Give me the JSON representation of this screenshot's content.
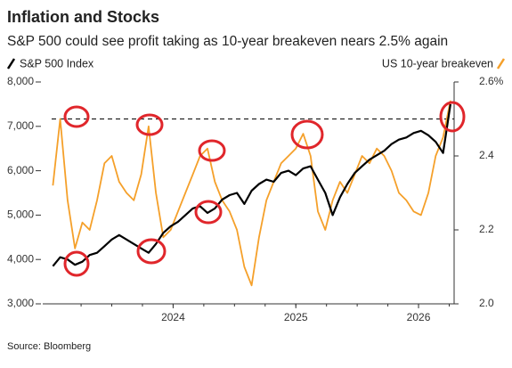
{
  "chart_data": {
    "type": "line",
    "title": "Inflation and Stocks",
    "subtitle": "S&P 500 could see profit taking as 10-year breakeven nears 2.5% again",
    "source": "Source: Bloomberg",
    "x": [
      2023.02,
      2023.08,
      2023.14,
      2023.2,
      2023.26,
      2023.32,
      2023.38,
      2023.44,
      2023.5,
      2023.56,
      2023.62,
      2023.68,
      2023.74,
      2023.8,
      2023.86,
      2023.92,
      2023.98,
      2024.04,
      2024.1,
      2024.16,
      2024.22,
      2024.28,
      2024.34,
      2024.4,
      2024.46,
      2024.52,
      2024.58,
      2024.64,
      2024.7,
      2024.76,
      2024.82,
      2024.88,
      2024.94,
      2025.0,
      2025.06,
      2025.12,
      2025.18,
      2025.24,
      2025.3,
      2025.36,
      2025.42,
      2025.48,
      2025.54,
      2025.6,
      2025.66,
      2025.72,
      2025.78,
      2025.84,
      2025.9,
      2025.96,
      2026.02,
      2026.08,
      2026.14,
      2026.2,
      2026.26
    ],
    "series": [
      {
        "name": "S&P 500 Index",
        "color": "#000000",
        "axis": "y",
        "values": [
          3850,
          4050,
          4000,
          3880,
          3950,
          4100,
          4150,
          4300,
          4450,
          4550,
          4450,
          4350,
          4250,
          4150,
          4350,
          4600,
          4750,
          4850,
          5000,
          5150,
          5200,
          5050,
          5150,
          5350,
          5450,
          5500,
          5250,
          5550,
          5700,
          5800,
          5750,
          5950,
          6000,
          5900,
          6050,
          6100,
          5800,
          5500,
          5000,
          5400,
          5700,
          5950,
          6100,
          6250,
          6350,
          6450,
          6600,
          6700,
          6750,
          6850,
          6900,
          6800,
          6650,
          6400,
          7500
        ]
      },
      {
        "name": "US 10-year breakeven",
        "color": "#f5a02a",
        "axis": "y2",
        "values": [
          2.32,
          2.5,
          2.28,
          2.15,
          2.22,
          2.2,
          2.28,
          2.38,
          2.4,
          2.33,
          2.3,
          2.28,
          2.35,
          2.48,
          2.3,
          2.18,
          2.2,
          2.25,
          2.3,
          2.35,
          2.4,
          2.42,
          2.33,
          2.28,
          2.25,
          2.2,
          2.1,
          2.05,
          2.18,
          2.28,
          2.33,
          2.38,
          2.4,
          2.42,
          2.46,
          2.4,
          2.25,
          2.2,
          2.28,
          2.33,
          2.3,
          2.35,
          2.4,
          2.38,
          2.42,
          2.4,
          2.36,
          2.3,
          2.28,
          2.25,
          2.24,
          2.3,
          2.4,
          2.45,
          2.55
        ]
      }
    ],
    "xlim": [
      2023.01,
      2026.29
    ],
    "xticks": [
      2024,
      2025,
      2026
    ],
    "ylim": [
      3000,
      8000
    ],
    "yticks": [
      {
        "value": 8000,
        "label": "8,000"
      },
      {
        "value": 7000,
        "label": "7,000"
      },
      {
        "value": 6000,
        "label": "6,000"
      },
      {
        "value": 5000,
        "label": "5,000"
      },
      {
        "value": 4000,
        "label": "4,000"
      },
      {
        "value": 3000,
        "label": "3,000"
      }
    ],
    "y2lim": [
      2.0,
      2.6
    ],
    "y2ticks": [
      {
        "value": 2.6,
        "label": "2.6%"
      },
      2.4,
      2.2,
      {
        "value": 2.0,
        "label": "2.0"
      }
    ],
    "reference_line": {
      "value": 2.5,
      "axis": "y2"
    },
    "grid": false
  }
}
